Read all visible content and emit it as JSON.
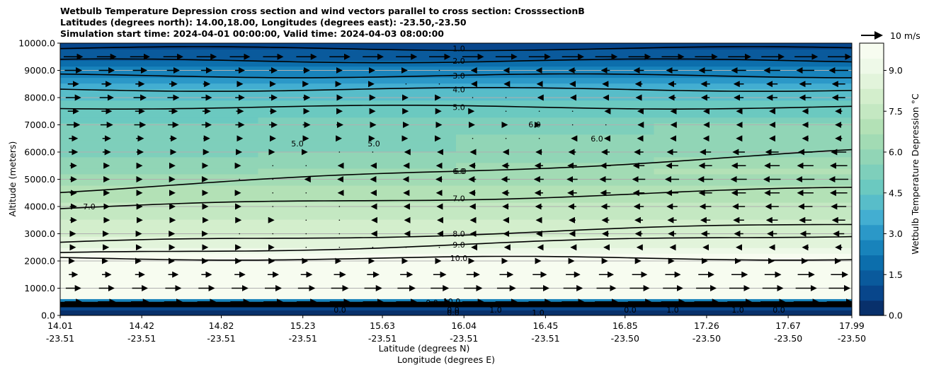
{
  "chart_data": {
    "type": "contour",
    "title_lines": [
      "Wetbulb Temperature Depression cross section and wind vectors parallel to cross section: CrosssectionB",
      "Latitudes (degrees north): 14.00,18.00, Longitudes (degrees east): -23.50,-23.50",
      "Simulation start time: 2024-04-01 00:00:00, Valid time: 2024-04-03 08:00:00"
    ],
    "ylabel": "Altitude (meters)",
    "xlabel_lat": "Latitude (degrees N)",
    "xlabel_lon": "Longitude (degrees E)",
    "ylim": [
      0,
      10000
    ],
    "yticks": [
      "0.0",
      "1000.0",
      "2000.0",
      "3000.0",
      "4000.0",
      "5000.0",
      "6000.0",
      "7000.0",
      "8000.0",
      "9000.0",
      "10000.0"
    ],
    "yticks_values": [
      0,
      1000,
      2000,
      3000,
      4000,
      5000,
      6000,
      7000,
      8000,
      9000,
      10000
    ],
    "xticks_lat": [
      "14.01",
      "14.42",
      "14.82",
      "15.23",
      "15.63",
      "16.04",
      "16.45",
      "16.85",
      "17.26",
      "17.67",
      "17.99"
    ],
    "xticks_lon": [
      "-23.51",
      "-23.51",
      "-23.51",
      "-23.51",
      "-23.51",
      "-23.51",
      "-23.51",
      "-23.50",
      "-23.50",
      "-23.50",
      "-23.50"
    ],
    "xticks_values": [
      14.01,
      14.42,
      14.82,
      15.23,
      15.63,
      16.04,
      16.45,
      16.85,
      17.26,
      17.67,
      17.99
    ],
    "xlim": [
      14.01,
      17.99
    ],
    "colorbar": {
      "label": "Wetbulb Temperature Depression °C",
      "range": [
        0,
        10
      ],
      "ticks": [
        "0.0",
        "1.5",
        "3.0",
        "4.5",
        "6.0",
        "7.5",
        "9.0"
      ],
      "tick_values": [
        0,
        1.5,
        3.0,
        4.5,
        6.0,
        7.5,
        9.0
      ],
      "colors": [
        "#08306b",
        "#08468b",
        "#0a5a9c",
        "#0c6eac",
        "#1883bb",
        "#2b98c8",
        "#43aed1",
        "#58bdc9",
        "#6bc9c0",
        "#7ecfbb",
        "#91d5b6",
        "#a2dbb4",
        "#b3e1b6",
        "#c4e8c2",
        "#d3eecc",
        "#e2f4db",
        "#eef9e8",
        "#f7fcf0"
      ]
    },
    "contour_levels": [
      {
        "label": "1.0",
        "value": 1.0,
        "altitude_m": 9800
      },
      {
        "label": "2.0",
        "value": 2.0,
        "altitude_m": 9350
      },
      {
        "label": "3.0",
        "value": 3.0,
        "altitude_m": 8800
      },
      {
        "label": "4.0",
        "value": 4.0,
        "altitude_m": 8300
      },
      {
        "label": "5.0",
        "value": 5.0,
        "altitude_m": 7650
      },
      {
        "label": "6.0",
        "value": 6.0,
        "altitude_m": 5300
      },
      {
        "label": "7.0",
        "value": 7.0,
        "altitude_m": 4300
      },
      {
        "label": "8.0",
        "value": 8.0,
        "altitude_m": 3000
      },
      {
        "label": "9.0",
        "value": 9.0,
        "altitude_m": 2600
      },
      {
        "label": "10.0",
        "value": 10.0,
        "altitude_m": 2100
      }
    ],
    "extra_contour_labels": [
      "5.0",
      "5.0",
      "6.0",
      "6.0",
      "6.0",
      "7.0",
      "0.0",
      "0.0",
      "1.0",
      "1.0",
      "0.0",
      "0.0",
      "1.0",
      "1.0",
      "0.0",
      "10.0",
      "0.0"
    ],
    "wind_reference": {
      "label": "10 m/s",
      "speed": 10
    },
    "wind_rows": [
      {
        "altitude_m": 9500,
        "start": 9,
        "end": 11
      },
      {
        "altitude_m": 9000,
        "start": 8,
        "end": -9
      },
      {
        "altitude_m": 8500,
        "start": 5,
        "end": -6
      },
      {
        "altitude_m": 8000,
        "start": 7,
        "end": -6
      },
      {
        "altitude_m": 7500,
        "start": 5,
        "end": -3
      },
      {
        "altitude_m": 7000,
        "start": 6,
        "end": -3
      },
      {
        "altitude_m": 6500,
        "start": 4,
        "end": -3
      },
      {
        "altitude_m": 6000,
        "start": 4,
        "end": -7
      },
      {
        "altitude_m": 5500,
        "start": 3,
        "end": -8
      },
      {
        "altitude_m": 5000,
        "start": 3,
        "end": -9
      },
      {
        "altitude_m": 4500,
        "start": 3,
        "end": -8
      },
      {
        "altitude_m": 4000,
        "start": 3,
        "end": -7
      },
      {
        "altitude_m": 3500,
        "start": 3,
        "end": -6
      },
      {
        "altitude_m": 3000,
        "start": 2,
        "end": -5
      },
      {
        "altitude_m": 2500,
        "start": 2,
        "end": -3
      },
      {
        "altitude_m": 2000,
        "start": 1,
        "end": 1
      },
      {
        "altitude_m": 1500,
        "start": 4,
        "end": 8
      },
      {
        "altitude_m": 1000,
        "start": 7,
        "end": 10
      },
      {
        "altitude_m": 500,
        "start": 8,
        "end": 12
      }
    ]
  }
}
